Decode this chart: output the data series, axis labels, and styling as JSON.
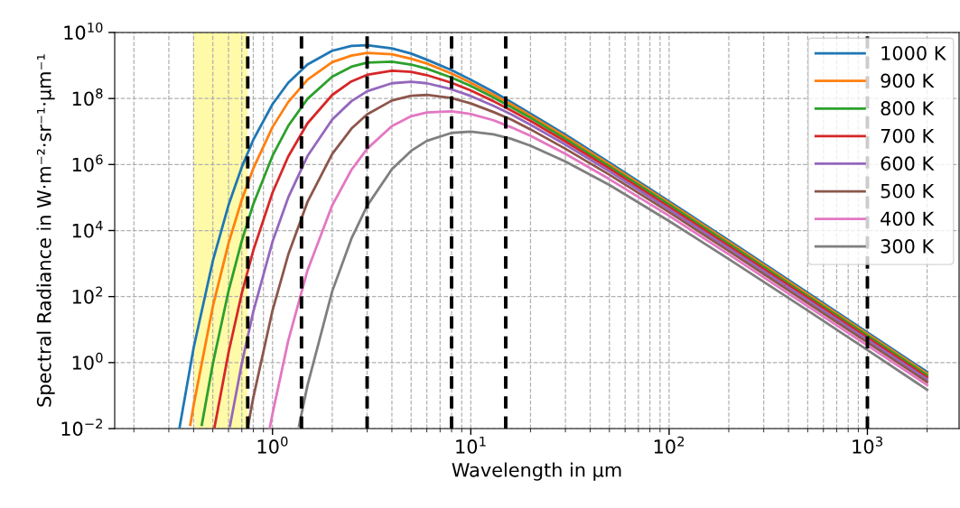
{
  "chart_data": {
    "type": "line",
    "xlabel": "Wavelength in µm",
    "ylabel": "Spectral Radiance in W·m⁻²·sr⁻¹·µm⁻¹",
    "log": "xy",
    "xlim": [
      0.16,
      2900
    ],
    "ylim": [
      0.01,
      10000000000.0
    ],
    "xticks": [
      {
        "value": 1,
        "label": "10$^{0}$"
      },
      {
        "value": 10,
        "label": "10$^{1}$"
      },
      {
        "value": 100,
        "label": "10$^{2}$"
      },
      {
        "value": 1000,
        "label": "10$^{3}$"
      }
    ],
    "yticks": [
      {
        "value": 0.01,
        "label": "10$^{−2}$"
      },
      {
        "value": 1,
        "label": "10$^{0}$"
      },
      {
        "value": 100,
        "label": "10$^{2}$"
      },
      {
        "value": 10000,
        "label": "10$^{4}$"
      },
      {
        "value": 1000000,
        "label": "10$^{6}$"
      },
      {
        "value": 100000000,
        "label": "10$^{8}$"
      },
      {
        "value": 10000000000,
        "label": "10$^{10}$"
      }
    ],
    "grid": true,
    "legend": "top right",
    "bands": [
      {
        "axis": "x",
        "from": 0.4,
        "to": 0.75,
        "color": "#fffaa8"
      }
    ],
    "ref_lines": [
      {
        "axis": "x",
        "value": 0.75,
        "color": "#000000",
        "line_style": "dashed"
      },
      {
        "axis": "x",
        "value": 1.4,
        "color": "#000000",
        "line_style": "dashed"
      },
      {
        "axis": "x",
        "value": 3,
        "color": "#000000",
        "line_style": "dashed"
      },
      {
        "axis": "x",
        "value": 8,
        "color": "#000000",
        "line_style": "dashed"
      },
      {
        "axis": "x",
        "value": 15,
        "color": "#000000",
        "line_style": "dashed"
      },
      {
        "axis": "x",
        "value": 1000,
        "color": "#000000",
        "line_style": "dashed"
      }
    ],
    "series": [
      {
        "name": "1000 K",
        "color": "#1f77b4",
        "x": [
          0.34,
          0.4,
          0.5,
          0.6,
          0.7,
          0.8,
          1,
          1.2,
          1.5,
          2,
          2.5,
          3,
          4,
          5,
          6,
          8,
          10,
          13,
          16,
          20,
          30,
          50,
          100,
          200,
          500,
          1000,
          2000
        ],
        "values": [
          0.011,
          2.8,
          1200,
          59000,
          840000,
          5600000,
          67000000,
          300000000,
          1070000000,
          2800000000,
          3900000000,
          4100000000,
          3300000000,
          2300000000,
          1500000000,
          720000000,
          370000000,
          160000000,
          78000000,
          35000000,
          8000000,
          1140000,
          77000,
          5000,
          131,
          8.2,
          0.52
        ]
      },
      {
        "name": "900 K",
        "color": "#ff7f0e",
        "x": [
          0.385,
          0.4,
          0.5,
          0.6,
          0.7,
          0.8,
          1,
          1.2,
          1.5,
          2,
          2.5,
          3,
          4,
          5,
          6,
          8,
          10,
          13,
          16,
          20,
          30,
          50,
          100,
          200,
          500,
          1000,
          2000
        ],
        "values": [
          0.013,
          0.051,
          50,
          4100,
          86000,
          760000,
          13600000,
          78000000,
          370000000,
          1260000000,
          2000000000,
          2400000000,
          2200000000,
          1600000000,
          1150000000,
          570000000,
          300000000,
          130000000,
          66000000,
          30000000,
          7000000,
          1010000,
          69000,
          4500,
          117,
          7.4,
          0.46
        ]
      },
      {
        "name": "800 K",
        "color": "#2ca02c",
        "x": [
          0.44,
          0.5,
          0.6,
          0.7,
          0.8,
          1,
          1.2,
          1.5,
          2,
          2.5,
          3,
          4,
          5,
          6,
          8,
          10,
          13,
          16,
          20,
          30,
          50,
          100,
          200,
          500,
          1000,
          2000
        ],
        "values": [
          0.013,
          0.91,
          147,
          4900,
          63000,
          1840000,
          14800000,
          97000000,
          460000000,
          920000000,
          1220000000,
          1310000000,
          1070000000,
          800000000,
          430000000,
          240000000,
          107000000,
          55000000,
          26000000,
          6000000,
          880000,
          61000,
          4000,
          104,
          6.6,
          0.41
        ]
      },
      {
        "name": "700 K",
        "color": "#d62728",
        "x": [
          0.51,
          0.6,
          0.7,
          0.8,
          1,
          1.2,
          1.5,
          2,
          2.5,
          3,
          4,
          5,
          6,
          8,
          10,
          13,
          16,
          20,
          30,
          50,
          100,
          200,
          500,
          1000,
          2000
        ],
        "values": [
          0.011,
          2.0,
          126,
          2500,
          141000,
          1740000,
          17600000,
          128000000,
          330000000,
          520000000,
          690000000,
          640000000,
          510000000,
          300000000,
          175000000,
          83000000,
          43000000,
          21000000,
          5000000,
          750000,
          52000,
          3400,
          91,
          5.7,
          0.36
        ]
      },
      {
        "name": "600 K",
        "color": "#9467bd",
        "x": [
          0.61,
          0.7,
          0.8,
          1,
          1.2,
          1.5,
          2,
          2.5,
          3,
          4,
          5,
          6,
          8,
          10,
          13,
          16,
          20,
          30,
          50,
          100,
          200,
          500,
          1000,
          2000
        ],
        "values": [
          0.012,
          0.94,
          35,
          4600,
          100000,
          1790000,
          23000000,
          83000000,
          166000000,
          290000000,
          320000000,
          290000000,
          190000000,
          119000000,
          60000000,
          33000000,
          16000000,
          4000000,
          620000,
          44000,
          2900,
          78,
          4.9,
          0.31
        ]
      },
      {
        "name": "500 K",
        "color": "#8c564b",
        "x": [
          0.75,
          0.8,
          1,
          1.2,
          1.5,
          2,
          2.5,
          3,
          4,
          5,
          6,
          8,
          10,
          13,
          16,
          20,
          30,
          50,
          100,
          200,
          500,
          1000,
          2000
        ],
        "values": [
          0.011,
          0.087,
          38,
          1850,
          73000,
          2100000,
          12200000,
          33000000,
          87000000,
          121000000,
          128000000,
          103000000,
          71000000,
          39000000,
          23000000,
          11600000,
          3000000,
          490000,
          36000,
          2400,
          64,
          4.1,
          0.26
        ]
      },
      {
        "name": "400 K",
        "color": "#e377c2",
        "x": [
          0.97,
          1,
          1.2,
          1.5,
          2,
          2.5,
          3,
          4,
          5,
          6,
          8,
          10,
          13,
          16,
          20,
          30,
          50,
          100,
          200,
          500,
          1000,
          2000
        ],
        "values": [
          0.011,
          0.028,
          4.6,
          610,
          58000,
          690000,
          3000000,
          14500000,
          29000000,
          38000000,
          41000000,
          34000000,
          22000000,
          13400000,
          7400000,
          2100000,
          360000,
          28000,
          1900,
          51,
          3.3,
          0.21
        ]
      },
      {
        "name": "300 K",
        "color": "#7f7f7f",
        "x": [
          1.36,
          1.5,
          2,
          2.5,
          3,
          4,
          5,
          6,
          8,
          10,
          13,
          16,
          20,
          30,
          50,
          100,
          200,
          500,
          1000,
          2000
        ],
        "values": [
          0.012,
          0.2,
          144,
          5700,
          56000,
          720000,
          2600000,
          5200000,
          9100000,
          9900000,
          8200000,
          6000000,
          3700000,
          1240000,
          240000,
          19400,
          1370,
          38,
          2.4,
          0.15
        ]
      }
    ]
  }
}
